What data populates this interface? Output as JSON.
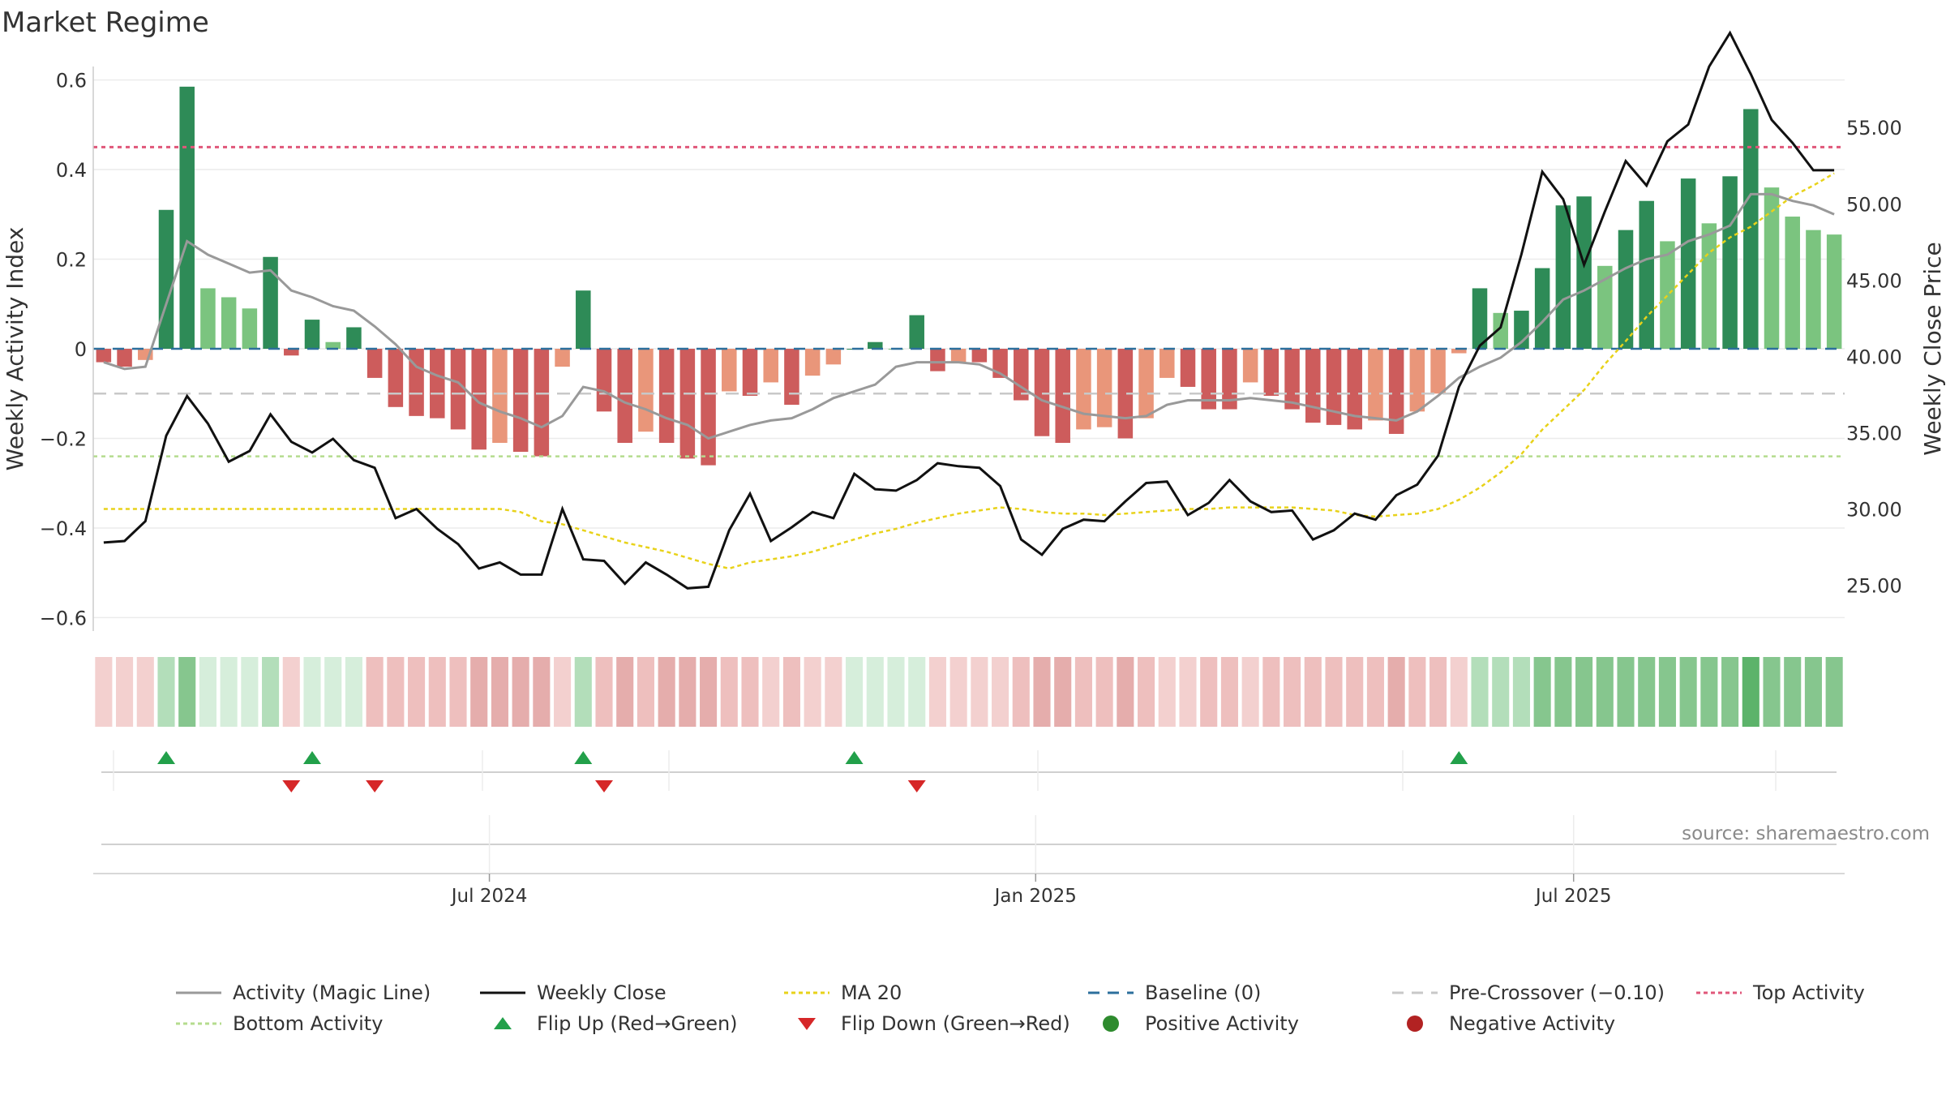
{
  "chart_data": {
    "type": "bar",
    "title": "Market Regime",
    "ylabel": "Weekly Activity Index",
    "y2label": "Weekly Close Price",
    "ylim": [
      -0.63,
      0.63
    ],
    "y2lim": [
      22.0,
      59.0
    ],
    "yticks": [
      -0.6,
      -0.4,
      -0.2,
      0,
      0.2,
      0.4,
      0.6
    ],
    "ytick_labels": [
      "−0.6",
      "−0.4",
      "−0.2",
      "0",
      "0.2",
      "0.4",
      "0.6"
    ],
    "y2ticks": [
      25,
      30,
      35,
      40,
      45,
      50,
      55
    ],
    "y2tick_labels": [
      "25.00",
      "30.00",
      "35.00",
      "40.00",
      "45.00",
      "50.00",
      "55.00"
    ],
    "xticks": [
      {
        "index": 18.5,
        "label": "Jul 2024"
      },
      {
        "index": 44.7,
        "label": "Jan 2025"
      },
      {
        "index": 70.5,
        "label": "Jul 2025"
      }
    ],
    "thresholds": {
      "top": 0.45,
      "bottom": -0.24,
      "pre_crossover": -0.1,
      "baseline": 0
    },
    "activity": [
      -0.03,
      -0.04,
      -0.025,
      0.31,
      0.585,
      0.135,
      0.115,
      0.09,
      0.205,
      -0.015,
      0.065,
      0.015,
      0.048,
      -0.065,
      -0.13,
      -0.15,
      -0.155,
      -0.18,
      -0.225,
      -0.21,
      -0.23,
      -0.24,
      -0.04,
      0.13,
      -0.14,
      -0.21,
      -0.185,
      -0.21,
      -0.245,
      -0.26,
      -0.095,
      -0.105,
      -0.075,
      -0.125,
      -0.06,
      -0.035,
      0.0,
      0.015,
      0.0,
      0.075,
      -0.05,
      -0.03,
      -0.03,
      -0.065,
      -0.115,
      -0.195,
      -0.21,
      -0.18,
      -0.175,
      -0.2,
      -0.155,
      -0.065,
      -0.085,
      -0.135,
      -0.135,
      -0.075,
      -0.105,
      -0.135,
      -0.165,
      -0.17,
      -0.18,
      -0.16,
      -0.19,
      -0.14,
      -0.1,
      -0.01,
      0.135,
      0.08,
      0.085,
      0.18,
      0.32,
      0.34,
      0.185,
      0.265,
      0.33,
      0.24,
      0.38,
      0.28,
      0.385,
      0.535,
      0.36,
      0.295,
      0.265,
      0.255
    ],
    "magic_line": [
      -0.03,
      -0.045,
      -0.04,
      0.1,
      0.24,
      0.21,
      0.19,
      0.17,
      0.175,
      0.13,
      0.115,
      0.095,
      0.085,
      0.05,
      0.01,
      -0.04,
      -0.06,
      -0.075,
      -0.12,
      -0.14,
      -0.155,
      -0.175,
      -0.15,
      -0.085,
      -0.095,
      -0.12,
      -0.135,
      -0.155,
      -0.17,
      -0.2,
      -0.185,
      -0.17,
      -0.16,
      -0.155,
      -0.135,
      -0.11,
      -0.095,
      -0.08,
      -0.04,
      -0.03,
      -0.03,
      -0.03,
      -0.035,
      -0.055,
      -0.085,
      -0.115,
      -0.13,
      -0.145,
      -0.15,
      -0.155,
      -0.15,
      -0.125,
      -0.115,
      -0.115,
      -0.115,
      -0.11,
      -0.115,
      -0.12,
      -0.13,
      -0.14,
      -0.15,
      -0.155,
      -0.16,
      -0.14,
      -0.105,
      -0.065,
      -0.04,
      -0.02,
      0.015,
      0.06,
      0.11,
      0.13,
      0.155,
      0.18,
      0.2,
      0.21,
      0.24,
      0.255,
      0.275,
      0.345,
      0.345,
      0.33,
      0.32,
      0.3
    ],
    "weekly_close": [
      27.8,
      27.9,
      29.2,
      34.8,
      37.4,
      35.6,
      33.1,
      33.8,
      36.2,
      34.4,
      33.7,
      34.6,
      33.2,
      32.7,
      29.4,
      30.0,
      28.7,
      27.7,
      26.1,
      26.5,
      25.7,
      25.7,
      30.0,
      26.7,
      26.6,
      25.1,
      26.5,
      25.7,
      24.8,
      24.9,
      28.6,
      31.0,
      27.9,
      28.8,
      29.8,
      29.4,
      32.3,
      31.3,
      31.2,
      31.9,
      33.0,
      32.8,
      32.7,
      31.5,
      28.0,
      27.0,
      28.7,
      29.3,
      29.2,
      30.5,
      31.7,
      31.8,
      29.6,
      30.4,
      31.9,
      30.5,
      29.8,
      29.9,
      28.0,
      28.6,
      29.7,
      29.3,
      30.9,
      31.6,
      33.5,
      38.0,
      40.7,
      41.9,
      46.7,
      52.1,
      50.3,
      46.0,
      49.5,
      52.8,
      51.2,
      54.1,
      55.2,
      59.0,
      61.2,
      58.5,
      55.5,
      54.0,
      52.2,
      52.2
    ],
    "ma20": [
      30.0,
      30.0,
      30.0,
      30.0,
      30.0,
      30.0,
      30.0,
      30.0,
      30.0,
      30.0,
      30.0,
      30.0,
      30.0,
      30.0,
      30.0,
      30.0,
      30.0,
      30.0,
      30.0,
      30.0,
      29.8,
      29.2,
      29.0,
      28.6,
      28.2,
      27.8,
      27.5,
      27.2,
      26.8,
      26.4,
      26.1,
      26.5,
      26.7,
      26.9,
      27.2,
      27.6,
      28.0,
      28.4,
      28.7,
      29.1,
      29.4,
      29.7,
      29.9,
      30.1,
      30.0,
      29.8,
      29.7,
      29.7,
      29.6,
      29.7,
      29.8,
      29.9,
      30.0,
      30.0,
      30.1,
      30.1,
      30.1,
      30.1,
      30.0,
      29.9,
      29.6,
      29.5,
      29.6,
      29.7,
      30.0,
      30.6,
      31.4,
      32.4,
      33.6,
      35.2,
      36.5,
      37.8,
      39.5,
      41.0,
      42.6,
      44.0,
      45.4,
      46.8,
      47.8,
      48.5,
      49.5,
      50.5,
      51.2,
      52.0
    ],
    "regime_strength": [
      -1,
      -1,
      -1,
      2,
      3,
      1,
      1,
      1,
      2,
      -1,
      1,
      1,
      1,
      -2,
      -2,
      -2,
      -2,
      -2,
      -3,
      -3,
      -3,
      -3,
      -1,
      2,
      -2,
      -3,
      -2,
      -3,
      -3,
      -3,
      -2,
      -2,
      -1,
      -2,
      -1,
      -1,
      1,
      1,
      1,
      1,
      -1,
      -1,
      -1,
      -1,
      -2,
      -3,
      -3,
      -2,
      -2,
      -3,
      -2,
      -1,
      -1,
      -2,
      -2,
      -1,
      -2,
      -2,
      -2,
      -2,
      -2,
      -2,
      -3,
      -2,
      -2,
      -1,
      2,
      2,
      2,
      3,
      3,
      3,
      3,
      3,
      3,
      3,
      3,
      3,
      3,
      4,
      3,
      3,
      3,
      3
    ],
    "flip_up": [
      3,
      10,
      23,
      36,
      65
    ],
    "flip_down": [
      9,
      13,
      24,
      39
    ],
    "series": [
      {
        "name": "Activity (Magic Line)",
        "color": "#999999"
      },
      {
        "name": "Weekly Close",
        "color": "#111111"
      },
      {
        "name": "MA 20",
        "color": "#e8d21a"
      },
      {
        "name": "Baseline (0)",
        "color": "#2c6f9c"
      },
      {
        "name": "Pre-Crossover (−0.10)",
        "color": "#c8c8c8"
      },
      {
        "name": "Top Activity",
        "color": "#e0577a"
      },
      {
        "name": "Bottom Activity",
        "color": "#b5dc8e"
      },
      {
        "name": "Flip Up (Red→Green)",
        "color": "#22a04a"
      },
      {
        "name": "Flip Down (Green→Red)",
        "color": "#d62728"
      },
      {
        "name": "Positive Activity",
        "color": "#2e8b2e"
      },
      {
        "name": "Negative Activity",
        "color": "#b22222"
      }
    ],
    "colors": {
      "pos_strong": "#2e8b57",
      "pos_weak": "#7bc47f",
      "neg_strong": "#cd5c5c",
      "neg_weak": "#e9967a"
    }
  },
  "source": "source: sharemaestro.com"
}
